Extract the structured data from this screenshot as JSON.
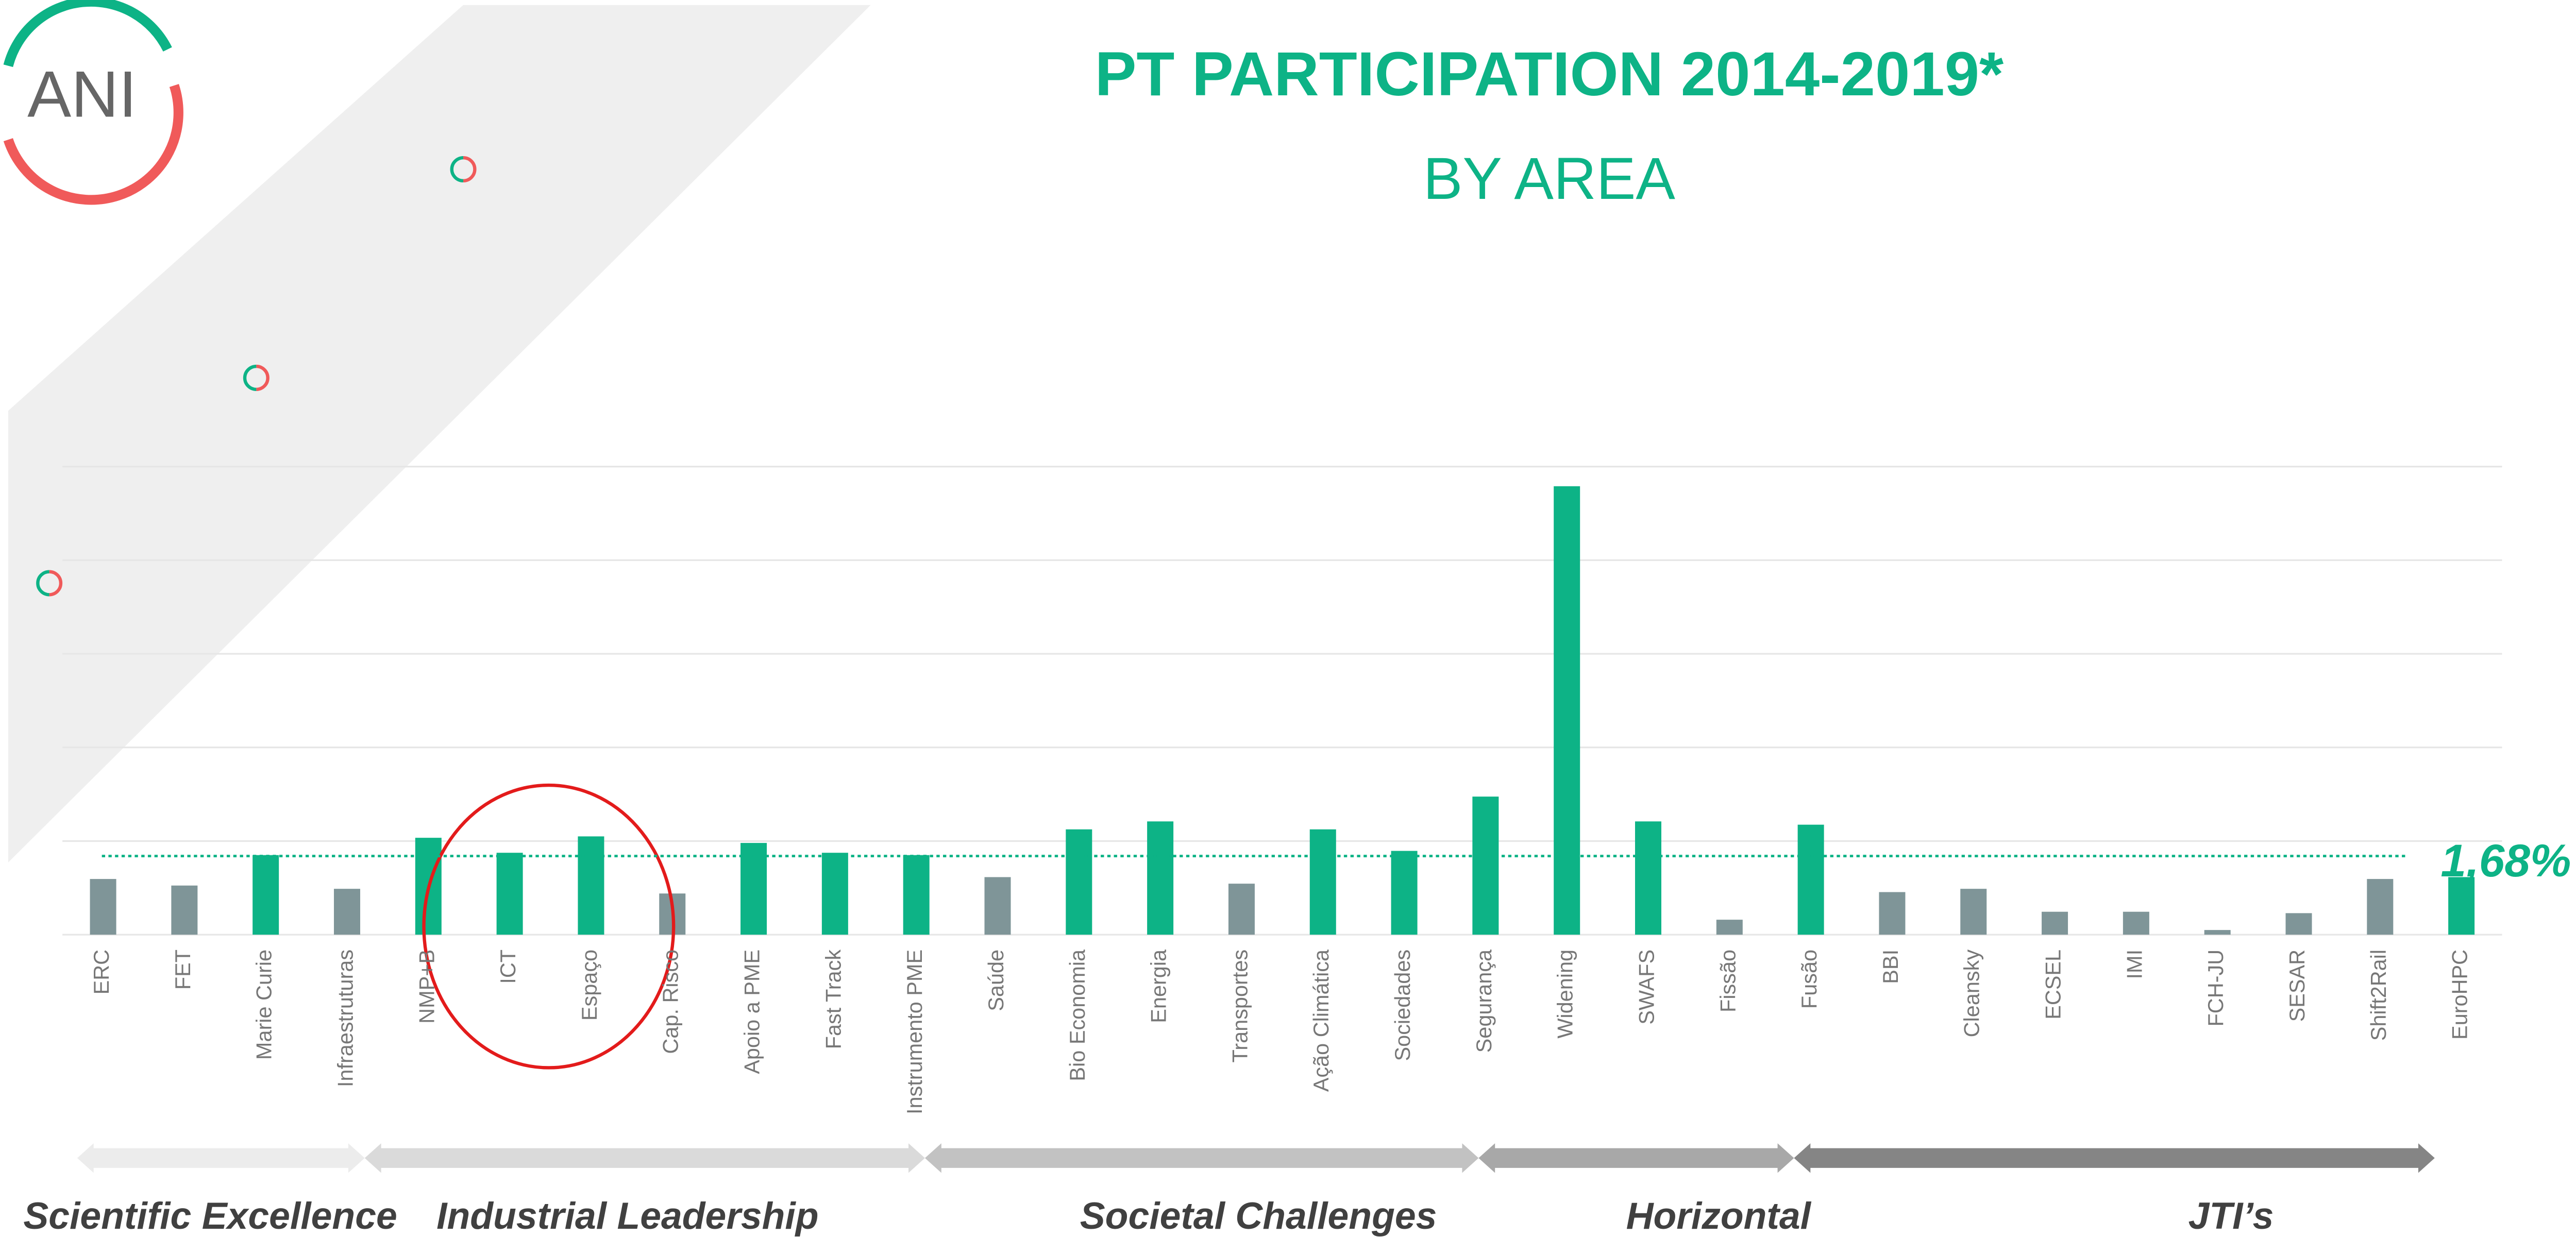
{
  "logo": "ANI",
  "chart_data": {
    "type": "bar",
    "title": "PT PARTICIPATION 2014-2019*",
    "subtitle": "BY AREA",
    "categories": [
      "ERC",
      "FET",
      "Marie Curie",
      "Infraestruturas",
      "NMP+B",
      "ICT",
      "Espaço",
      "Cap. Risco",
      "Apoio a PME",
      "Fast Track",
      "Instrumento PME",
      "Saúde",
      "Bio Economia",
      "Energia",
      "Transportes",
      "Ação Climática",
      "Sociedades",
      "Segurança",
      "Widening",
      "SWAFS",
      "Fissão",
      "Fusão",
      "BBI",
      "Cleansky",
      "ECSEL",
      "IMI",
      "FCH-JU",
      "SESAR",
      "Shift2Rail",
      "EuroHPC"
    ],
    "values": [
      1.19,
      1.05,
      1.7,
      0.98,
      2.07,
      1.75,
      2.1,
      0.88,
      1.96,
      1.75,
      1.7,
      1.23,
      2.25,
      2.42,
      1.09,
      2.25,
      1.79,
      2.95,
      9.58,
      2.42,
      0.32,
      2.35,
      0.91,
      0.98,
      0.49,
      0.49,
      0.1,
      0.46,
      1.19,
      1.23
    ],
    "colors": [
      "#7f9598",
      "#7f9598",
      "#0db386",
      "#7f9598",
      "#0db386",
      "#0db386",
      "#0db386",
      "#7f9598",
      "#0db386",
      "#0db386",
      "#0db386",
      "#7f9598",
      "#0db386",
      "#0db386",
      "#7f9598",
      "#0db386",
      "#0db386",
      "#0db386",
      "#0db386",
      "#0db386",
      "#7f9598",
      "#0db386",
      "#7f9598",
      "#7f9598",
      "#7f9598",
      "#7f9598",
      "#7f9598",
      "#7f9598",
      "#7f9598",
      "#0db386"
    ],
    "ylim": [
      0,
      10
    ],
    "yticks": [
      0,
      2,
      4,
      6,
      8,
      10
    ],
    "grid": true,
    "reference": {
      "value": 1.68,
      "label": "1,68%",
      "color": "#0db386"
    },
    "sections": [
      "Scientific Excellence",
      "Industrial Leadership",
      "Societal Challenges",
      "Horizontal",
      "JTI’s"
    ]
  }
}
